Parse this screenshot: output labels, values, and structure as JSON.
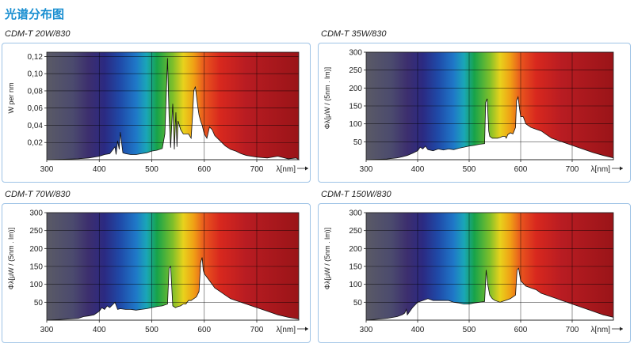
{
  "page": {
    "title": "光谱分布图"
  },
  "charts": [
    {
      "id": "c1",
      "title": "CDM-T 20W/830"
    },
    {
      "id": "c2",
      "title": "CDM-T 35W/830"
    },
    {
      "id": "c3",
      "title": "CDM-T 70W/830"
    },
    {
      "id": "c4",
      "title": "CDM-T 150W/830"
    }
  ],
  "chart_data": [
    {
      "type": "area",
      "title": "CDM-T 20W/830",
      "ylabel": "W per nm",
      "xlabel": "λ[nm]",
      "xlim": [
        300,
        780
      ],
      "ylim": [
        0,
        0.125
      ],
      "xticks": [
        300,
        400,
        500,
        600,
        700
      ],
      "yticks": [
        0.02,
        0.04,
        0.06,
        0.08,
        0.1,
        0.12
      ],
      "ytick_labels": [
        "0,02",
        "0,04",
        "0,06",
        "0,08",
        "0,10",
        "0,12"
      ],
      "grid": true,
      "fill_color": "#ffffff",
      "x": [
        300,
        360,
        380,
        390,
        400,
        410,
        420,
        430,
        432,
        435,
        438,
        440,
        445,
        450,
        460,
        470,
        480,
        490,
        500,
        510,
        520,
        525,
        530,
        533,
        536,
        540,
        543,
        546,
        548,
        550,
        555,
        560,
        565,
        570,
        575,
        578,
        580,
        583,
        586,
        588,
        590,
        593,
        596,
        600,
        605,
        610,
        615,
        620,
        625,
        630,
        640,
        650,
        660,
        670,
        680,
        700,
        720,
        740,
        760,
        775,
        780
      ],
      "y": [
        0,
        0.001,
        0.002,
        0.003,
        0.004,
        0.006,
        0.007,
        0.015,
        0.006,
        0.022,
        0.012,
        0.032,
        0.008,
        0.007,
        0.006,
        0.006,
        0.007,
        0.008,
        0.01,
        0.011,
        0.013,
        0.03,
        0.118,
        0.05,
        0.014,
        0.065,
        0.012,
        0.055,
        0.015,
        0.045,
        0.035,
        0.03,
        0.03,
        0.03,
        0.025,
        0.055,
        0.08,
        0.085,
        0.07,
        0.06,
        0.052,
        0.045,
        0.04,
        0.03,
        0.025,
        0.038,
        0.035,
        0.028,
        0.025,
        0.022,
        0.016,
        0.012,
        0.01,
        0.007,
        0.005,
        0.003,
        0.002,
        0.004,
        0.001,
        0.002,
        0
      ]
    },
    {
      "type": "area",
      "title": "CDM-T 35W/830",
      "ylabel": "Φλ[μW / (5nm . lm)]",
      "xlabel": "λ[nm]",
      "xlim": [
        300,
        780
      ],
      "ylim": [
        0,
        300
      ],
      "xticks": [
        300,
        400,
        500,
        600,
        700
      ],
      "yticks": [
        50,
        100,
        150,
        200,
        250,
        300
      ],
      "grid": true,
      "fill_color": "#ffffff",
      "x": [
        300,
        340,
        360,
        370,
        380,
        390,
        400,
        405,
        410,
        415,
        420,
        430,
        440,
        450,
        460,
        470,
        480,
        490,
        500,
        510,
        520,
        530,
        532,
        535,
        538,
        540,
        545,
        550,
        555,
        560,
        565,
        570,
        572,
        575,
        580,
        585,
        590,
        592,
        595,
        598,
        600,
        605,
        610,
        615,
        620,
        630,
        640,
        650,
        660,
        670,
        680,
        690,
        700,
        720,
        740,
        760,
        780
      ],
      "y": [
        0,
        2,
        5,
        8,
        12,
        18,
        25,
        35,
        30,
        38,
        28,
        25,
        30,
        27,
        30,
        28,
        32,
        35,
        38,
        40,
        43,
        45,
        160,
        170,
        80,
        65,
        60,
        60,
        60,
        62,
        65,
        65,
        60,
        70,
        75,
        72,
        90,
        165,
        175,
        140,
        120,
        120,
        100,
        95,
        90,
        85,
        80,
        70,
        60,
        55,
        50,
        45,
        40,
        30,
        20,
        12,
        5
      ]
    },
    {
      "type": "area",
      "title": "CDM-T 70W/830",
      "ylabel": "Φλ[μW / (5nm . lm)]",
      "xlabel": "λ[nm]",
      "xlim": [
        300,
        780
      ],
      "ylim": [
        0,
        300
      ],
      "xticks": [
        300,
        400,
        500,
        600,
        700
      ],
      "yticks": [
        50,
        100,
        150,
        200,
        250,
        300
      ],
      "grid": true,
      "fill_color": "#ffffff",
      "x": [
        300,
        340,
        360,
        370,
        380,
        390,
        400,
        405,
        410,
        415,
        420,
        430,
        435,
        440,
        450,
        460,
        470,
        480,
        490,
        500,
        510,
        520,
        530,
        533,
        536,
        540,
        545,
        550,
        555,
        560,
        565,
        570,
        575,
        580,
        585,
        590,
        593,
        596,
        598,
        600,
        605,
        610,
        615,
        620,
        630,
        640,
        650,
        660,
        670,
        680,
        690,
        700,
        720,
        740,
        760,
        780
      ],
      "y": [
        0,
        3,
        5,
        10,
        12,
        15,
        25,
        35,
        30,
        40,
        35,
        50,
        30,
        32,
        30,
        30,
        28,
        30,
        32,
        35,
        38,
        40,
        45,
        145,
        150,
        40,
        35,
        38,
        40,
        45,
        45,
        55,
        55,
        60,
        65,
        80,
        160,
        175,
        140,
        130,
        120,
        110,
        100,
        90,
        80,
        70,
        60,
        55,
        50,
        45,
        40,
        35,
        25,
        15,
        8,
        3
      ]
    },
    {
      "type": "area",
      "title": "CDM-T 150W/830",
      "ylabel": "Φλ[μW / (5nm . lm)]",
      "xlabel": "λ[nm]",
      "xlim": [
        300,
        780
      ],
      "ylim": [
        0,
        300
      ],
      "xticks": [
        300,
        400,
        500,
        600,
        700
      ],
      "yticks": [
        50,
        100,
        150,
        200,
        250,
        300
      ],
      "grid": true,
      "fill_color": "#ffffff",
      "x": [
        300,
        340,
        360,
        370,
        375,
        378,
        380,
        390,
        400,
        410,
        420,
        430,
        440,
        450,
        460,
        470,
        480,
        490,
        500,
        510,
        520,
        530,
        533,
        536,
        540,
        545,
        550,
        560,
        570,
        580,
        590,
        593,
        596,
        600,
        610,
        620,
        630,
        640,
        650,
        660,
        670,
        680,
        690,
        700,
        720,
        740,
        760,
        780
      ],
      "y": [
        0,
        5,
        10,
        15,
        20,
        30,
        15,
        35,
        50,
        55,
        60,
        55,
        55,
        55,
        55,
        50,
        48,
        45,
        45,
        48,
        50,
        52,
        140,
        100,
        70,
        60,
        55,
        50,
        55,
        60,
        70,
        140,
        145,
        110,
        95,
        90,
        85,
        75,
        70,
        65,
        60,
        55,
        50,
        45,
        35,
        25,
        15,
        8
      ]
    }
  ]
}
